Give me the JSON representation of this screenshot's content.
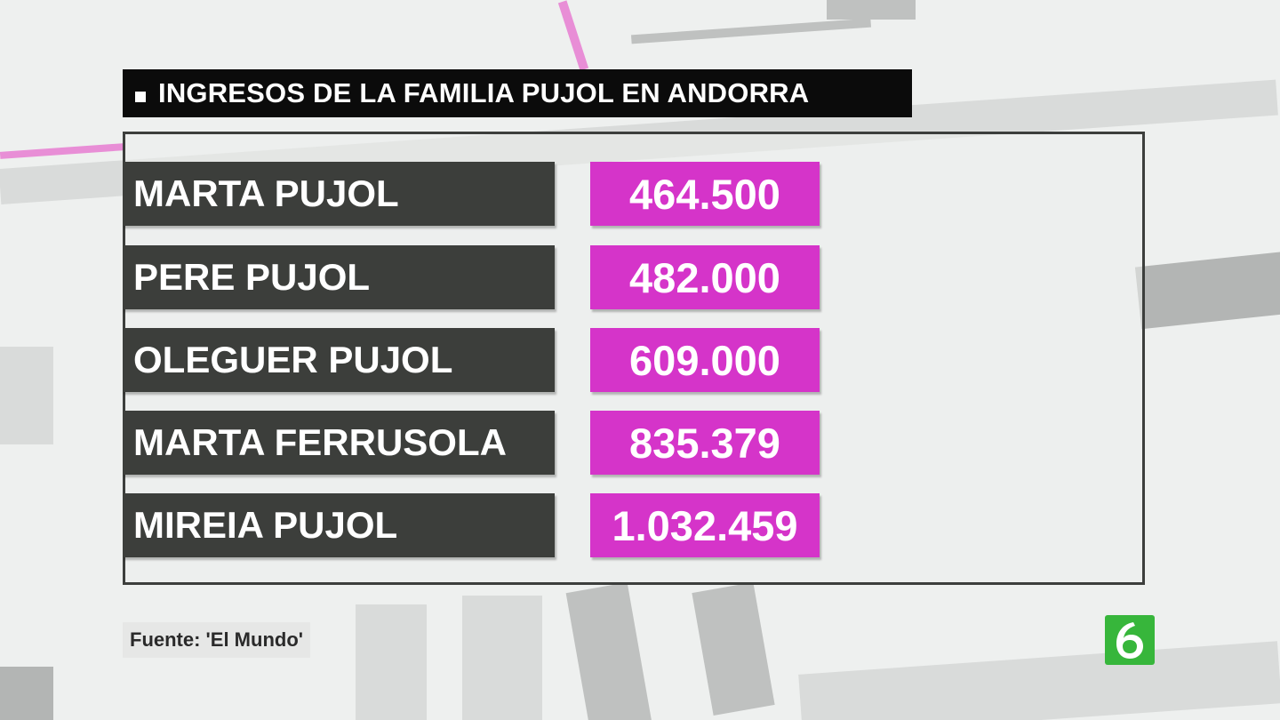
{
  "title": "INGRESOS DE LA FAMILIA PUJOL EN ANDORRA",
  "rows": [
    {
      "name": "MARTA PUJOL",
      "value": "464.500"
    },
    {
      "name": "PERE PUJOL",
      "value": "482.000"
    },
    {
      "name": "OLEGUER PUJOL",
      "value": "609.000"
    },
    {
      "name": "MARTA FERRUSOLA",
      "value": "835.379"
    },
    {
      "name": "MIREIA PUJOL",
      "value": "1.032.459"
    }
  ],
  "source": "Fuente: 'El Mundo'",
  "logo": {
    "icon": "la-sexta-logo-icon",
    "color": "#37b63b"
  },
  "colors": {
    "title_bg": "#0b0b0b",
    "name_bg": "#3c3e3b",
    "value_bg": "#d534c9",
    "accent_pink": "#e88ed6"
  }
}
